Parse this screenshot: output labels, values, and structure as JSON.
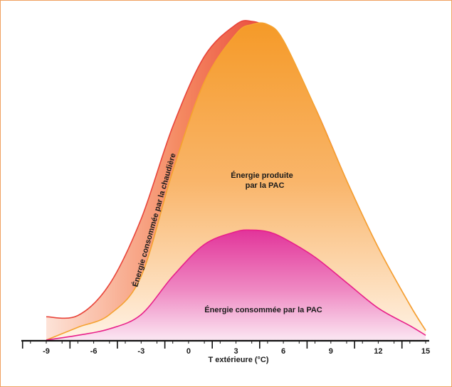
{
  "chart_data": {
    "type": "area",
    "title": "",
    "xlabel": "T extérieure (°C)",
    "ylabel": "",
    "xlim": [
      -9,
      15
    ],
    "x_ticks": [
      -9,
      -6,
      -3,
      0,
      3,
      6,
      9,
      12,
      15
    ],
    "grid": false,
    "legend": "none",
    "series": [
      {
        "label": "Énergie consommée par la chaudière",
        "color": "#e8443a",
        "x": [
          -9,
          -7,
          -5,
          -3,
          -1,
          1,
          3,
          4,
          5,
          6,
          8,
          10,
          12,
          14,
          15
        ],
        "y": [
          0.073,
          0.077,
          0.175,
          0.38,
          0.67,
          0.89,
          0.99,
          1.0,
          0.98,
          0.92,
          0.73,
          0.5,
          0.29,
          0.11,
          0.03
        ]
      },
      {
        "label": "Énergie produite par la PAC",
        "color": "#f5a230",
        "x": [
          -9,
          -7,
          -5,
          -3,
          -1,
          1,
          3,
          4,
          5,
          6,
          8,
          10,
          12,
          14,
          15
        ],
        "y": [
          0.0,
          0.04,
          0.08,
          0.2,
          0.53,
          0.81,
          0.96,
          0.99,
          0.99,
          0.94,
          0.73,
          0.5,
          0.29,
          0.11,
          0.03
        ]
      },
      {
        "label": "Énergie consommée par la PAC",
        "color": "#e8208a",
        "x": [
          -9,
          -7,
          -5,
          -3,
          -1,
          1,
          3,
          4,
          5,
          6,
          8,
          10,
          12,
          14,
          15
        ],
        "y": [
          0.0,
          0.015,
          0.035,
          0.08,
          0.2,
          0.3,
          0.34,
          0.345,
          0.34,
          0.32,
          0.26,
          0.18,
          0.1,
          0.045,
          0.015
        ]
      }
    ]
  },
  "labels": {
    "boiler": "Énergie consommée par la chaudière",
    "produced_line1": "Énergie produite",
    "produced_line2": "par la PAC",
    "consumed": "Énergie consommée par la PAC",
    "axis_title": "T extérieure (°C)"
  }
}
